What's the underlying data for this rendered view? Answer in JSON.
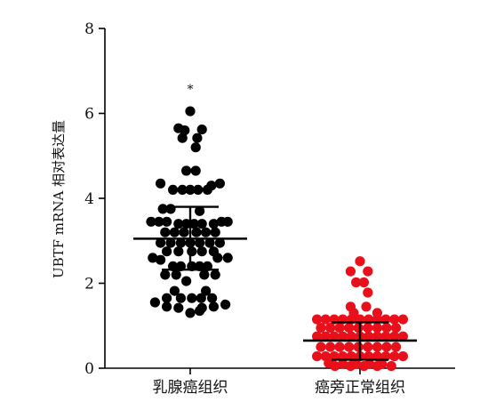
{
  "chart_data": {
    "type": "scatter",
    "title": "",
    "xlabel": "",
    "ylabel": "UBTF mRNA 相对表达量",
    "ylim": [
      0,
      8
    ],
    "yticks": [
      "0",
      "2",
      "4",
      "6",
      "8"
    ],
    "categories": [
      "乳腺癌组织",
      "癌旁正常组织"
    ],
    "grid": false,
    "legend": "none",
    "annotations": [
      {
        "text": "*",
        "category": "乳腺癌组织",
        "y": 6.6
      }
    ],
    "series": [
      {
        "category": "乳腺癌组织",
        "color": "#000000",
        "mean": 3.05,
        "sd_low": 2.32,
        "sd_high": 3.8,
        "points": [
          {
            "x": 0.0,
            "y": 6.05
          },
          {
            "x": -0.15,
            "y": 5.65
          },
          {
            "x": -0.07,
            "y": 5.6
          },
          {
            "x": 0.15,
            "y": 5.62
          },
          {
            "x": -0.1,
            "y": 5.42
          },
          {
            "x": 0.09,
            "y": 5.42
          },
          {
            "x": 0.07,
            "y": 5.2
          },
          {
            "x": -0.05,
            "y": 4.65
          },
          {
            "x": 0.07,
            "y": 4.65
          },
          {
            "x": -0.38,
            "y": 4.35
          },
          {
            "x": 0.38,
            "y": 4.35
          },
          {
            "x": 0.27,
            "y": 4.3
          },
          {
            "x": -0.22,
            "y": 4.2
          },
          {
            "x": -0.1,
            "y": 4.2
          },
          {
            "x": 0.0,
            "y": 4.2
          },
          {
            "x": 0.1,
            "y": 4.2
          },
          {
            "x": 0.22,
            "y": 4.2
          },
          {
            "x": -0.35,
            "y": 3.75
          },
          {
            "x": -0.25,
            "y": 3.75
          },
          {
            "x": 0.12,
            "y": 3.7
          },
          {
            "x": -0.5,
            "y": 3.45
          },
          {
            "x": -0.4,
            "y": 3.45
          },
          {
            "x": -0.3,
            "y": 3.45
          },
          {
            "x": -0.15,
            "y": 3.4
          },
          {
            "x": -0.05,
            "y": 3.4
          },
          {
            "x": 0.05,
            "y": 3.4
          },
          {
            "x": 0.15,
            "y": 3.4
          },
          {
            "x": 0.3,
            "y": 3.4
          },
          {
            "x": 0.4,
            "y": 3.45
          },
          {
            "x": 0.48,
            "y": 3.45
          },
          {
            "x": -0.32,
            "y": 3.2
          },
          {
            "x": -0.2,
            "y": 3.2
          },
          {
            "x": -0.08,
            "y": 3.2
          },
          {
            "x": 0.08,
            "y": 3.2
          },
          {
            "x": 0.2,
            "y": 3.2
          },
          {
            "x": 0.32,
            "y": 3.2
          },
          {
            "x": -0.38,
            "y": 2.95
          },
          {
            "x": -0.25,
            "y": 2.95
          },
          {
            "x": -0.12,
            "y": 2.95
          },
          {
            "x": 0.0,
            "y": 2.95
          },
          {
            "x": 0.12,
            "y": 2.95
          },
          {
            "x": 0.25,
            "y": 2.95
          },
          {
            "x": 0.38,
            "y": 2.95
          },
          {
            "x": -0.3,
            "y": 2.75
          },
          {
            "x": -0.15,
            "y": 2.75
          },
          {
            "x": 0.02,
            "y": 2.75
          },
          {
            "x": 0.15,
            "y": 2.75
          },
          {
            "x": 0.3,
            "y": 2.75
          },
          {
            "x": -0.48,
            "y": 2.6
          },
          {
            "x": -0.38,
            "y": 2.55
          },
          {
            "x": 0.35,
            "y": 2.6
          },
          {
            "x": 0.48,
            "y": 2.6
          },
          {
            "x": -0.22,
            "y": 2.4
          },
          {
            "x": -0.12,
            "y": 2.4
          },
          {
            "x": 0.02,
            "y": 2.4
          },
          {
            "x": 0.12,
            "y": 2.4
          },
          {
            "x": 0.22,
            "y": 2.4
          },
          {
            "x": -0.32,
            "y": 2.2
          },
          {
            "x": -0.18,
            "y": 2.2
          },
          {
            "x": 0.18,
            "y": 2.2
          },
          {
            "x": 0.32,
            "y": 2.2
          },
          {
            "x": -0.05,
            "y": 2.05
          },
          {
            "x": -0.2,
            "y": 1.82
          },
          {
            "x": 0.2,
            "y": 1.82
          },
          {
            "x": -0.3,
            "y": 1.65
          },
          {
            "x": -0.12,
            "y": 1.65
          },
          {
            "x": 0.02,
            "y": 1.65
          },
          {
            "x": 0.14,
            "y": 1.65
          },
          {
            "x": 0.28,
            "y": 1.65
          },
          {
            "x": -0.45,
            "y": 1.55
          },
          {
            "x": 0.45,
            "y": 1.5
          },
          {
            "x": -0.3,
            "y": 1.45
          },
          {
            "x": -0.15,
            "y": 1.42
          },
          {
            "x": 0.15,
            "y": 1.42
          },
          {
            "x": 0.3,
            "y": 1.45
          },
          {
            "x": 0.0,
            "y": 1.3
          },
          {
            "x": 0.12,
            "y": 1.35
          }
        ]
      },
      {
        "category": "癌旁正常组织",
        "color": "#e8101a",
        "mean": 0.65,
        "sd_low": 0.2,
        "sd_high": 1.08,
        "points": [
          {
            "x": 0.0,
            "y": 2.52
          },
          {
            "x": -0.12,
            "y": 2.28
          },
          {
            "x": 0.1,
            "y": 2.28
          },
          {
            "x": -0.05,
            "y": 2.02
          },
          {
            "x": 0.05,
            "y": 2.02
          },
          {
            "x": 0.1,
            "y": 1.78
          },
          {
            "x": -0.12,
            "y": 1.45
          },
          {
            "x": 0.08,
            "y": 1.45
          },
          {
            "x": -0.08,
            "y": 1.3
          },
          {
            "x": 0.22,
            "y": 1.3
          },
          {
            "x": -0.55,
            "y": 1.15
          },
          {
            "x": -0.44,
            "y": 1.15
          },
          {
            "x": -0.33,
            "y": 1.15
          },
          {
            "x": -0.22,
            "y": 1.15
          },
          {
            "x": -0.11,
            "y": 1.15
          },
          {
            "x": 0.0,
            "y": 1.15
          },
          {
            "x": 0.11,
            "y": 1.15
          },
          {
            "x": 0.22,
            "y": 1.15
          },
          {
            "x": 0.33,
            "y": 1.15
          },
          {
            "x": 0.44,
            "y": 1.15
          },
          {
            "x": 0.55,
            "y": 1.15
          },
          {
            "x": -0.5,
            "y": 0.95
          },
          {
            "x": -0.38,
            "y": 0.95
          },
          {
            "x": -0.26,
            "y": 0.95
          },
          {
            "x": -0.14,
            "y": 0.95
          },
          {
            "x": -0.02,
            "y": 0.95
          },
          {
            "x": 0.1,
            "y": 0.95
          },
          {
            "x": 0.22,
            "y": 0.95
          },
          {
            "x": 0.34,
            "y": 0.95
          },
          {
            "x": 0.46,
            "y": 0.95
          },
          {
            "x": -0.55,
            "y": 0.75
          },
          {
            "x": -0.44,
            "y": 0.75
          },
          {
            "x": -0.33,
            "y": 0.75
          },
          {
            "x": -0.22,
            "y": 0.75
          },
          {
            "x": -0.11,
            "y": 0.75
          },
          {
            "x": 0.0,
            "y": 0.75
          },
          {
            "x": 0.11,
            "y": 0.75
          },
          {
            "x": 0.22,
            "y": 0.75
          },
          {
            "x": 0.33,
            "y": 0.75
          },
          {
            "x": 0.44,
            "y": 0.75
          },
          {
            "x": 0.55,
            "y": 0.75
          },
          {
            "x": -0.5,
            "y": 0.5
          },
          {
            "x": -0.38,
            "y": 0.5
          },
          {
            "x": -0.26,
            "y": 0.5
          },
          {
            "x": -0.14,
            "y": 0.5
          },
          {
            "x": -0.02,
            "y": 0.5
          },
          {
            "x": 0.1,
            "y": 0.5
          },
          {
            "x": 0.22,
            "y": 0.5
          },
          {
            "x": 0.34,
            "y": 0.5
          },
          {
            "x": 0.46,
            "y": 0.5
          },
          {
            "x": -0.55,
            "y": 0.28
          },
          {
            "x": -0.44,
            "y": 0.28
          },
          {
            "x": -0.33,
            "y": 0.28
          },
          {
            "x": -0.22,
            "y": 0.28
          },
          {
            "x": -0.11,
            "y": 0.28
          },
          {
            "x": 0.0,
            "y": 0.28
          },
          {
            "x": 0.11,
            "y": 0.28
          },
          {
            "x": 0.22,
            "y": 0.28
          },
          {
            "x": 0.33,
            "y": 0.28
          },
          {
            "x": 0.44,
            "y": 0.28
          },
          {
            "x": 0.55,
            "y": 0.28
          },
          {
            "x": -0.4,
            "y": 0.12
          },
          {
            "x": -0.22,
            "y": 0.1
          },
          {
            "x": -0.05,
            "y": 0.1
          },
          {
            "x": 0.12,
            "y": 0.1
          },
          {
            "x": 0.28,
            "y": 0.1
          },
          {
            "x": -0.32,
            "y": 0.05
          },
          {
            "x": -0.12,
            "y": 0.05
          },
          {
            "x": 0.05,
            "y": 0.05
          },
          {
            "x": 0.22,
            "y": 0.05
          },
          {
            "x": 0.4,
            "y": 0.05
          }
        ]
      }
    ]
  }
}
